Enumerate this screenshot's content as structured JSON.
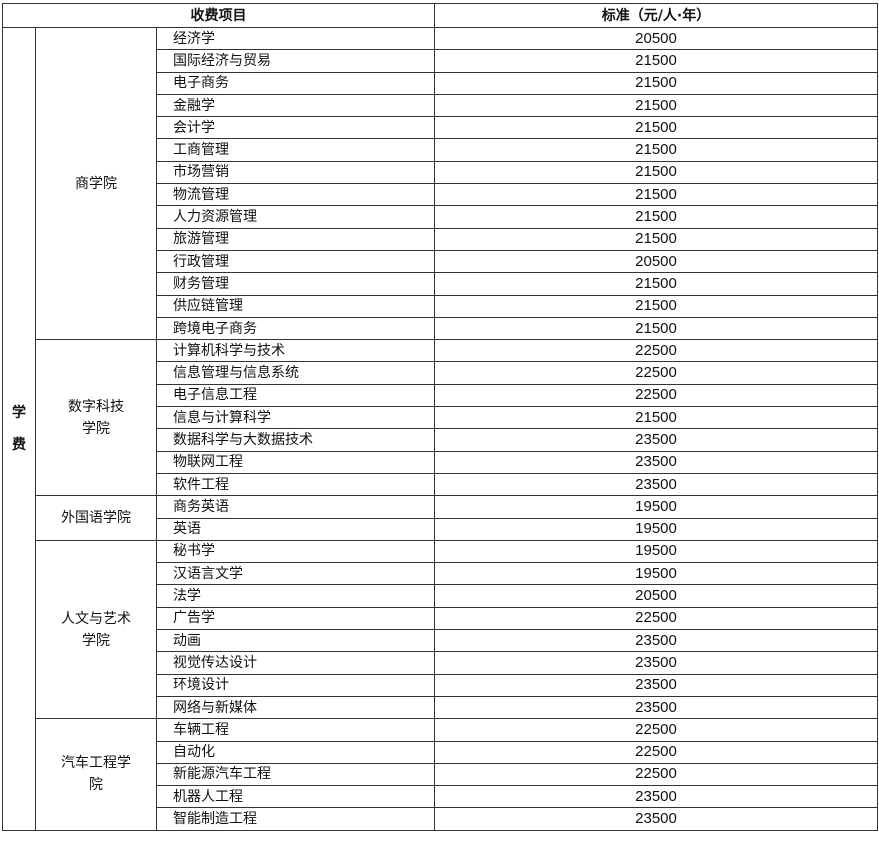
{
  "header": {
    "item": "收费项目",
    "standard": "标准（元/人·年）"
  },
  "category": "学费",
  "colleges": [
    {
      "name": "商学院",
      "majors": [
        [
          "经济学",
          "20500"
        ],
        [
          "国际经济与贸易",
          "21500"
        ],
        [
          "电子商务",
          "21500"
        ],
        [
          "金融学",
          "21500"
        ],
        [
          "会计学",
          "21500"
        ],
        [
          "工商管理",
          "21500"
        ],
        [
          "市场营销",
          "21500"
        ],
        [
          "物流管理",
          "21500"
        ],
        [
          "人力资源管理",
          "21500"
        ],
        [
          "旅游管理",
          "21500"
        ],
        [
          "行政管理",
          "20500"
        ],
        [
          "财务管理",
          "21500"
        ],
        [
          "供应链管理",
          "21500"
        ],
        [
          "跨境电子商务",
          "21500"
        ]
      ]
    },
    {
      "name": "数字科技学院",
      "majors": [
        [
          "计算机科学与技术",
          "22500"
        ],
        [
          "信息管理与信息系统",
          "22500"
        ],
        [
          "电子信息工程",
          "22500"
        ],
        [
          "信息与计算科学",
          "21500"
        ],
        [
          "数据科学与大数据技术",
          "23500"
        ],
        [
          "物联网工程",
          "23500"
        ],
        [
          "软件工程",
          "23500"
        ]
      ]
    },
    {
      "name": "外国语学院",
      "majors": [
        [
          "商务英语",
          "19500"
        ],
        [
          "英语",
          "19500"
        ]
      ]
    },
    {
      "name": "人文与艺术学院",
      "majors": [
        [
          "秘书学",
          "19500"
        ],
        [
          "汉语言文学",
          "19500"
        ],
        [
          "法学",
          "20500"
        ],
        [
          "广告学",
          "22500"
        ],
        [
          "动画",
          "23500"
        ],
        [
          "视觉传达设计",
          "23500"
        ],
        [
          "环境设计",
          "23500"
        ],
        [
          "网络与新媒体",
          "23500"
        ]
      ]
    },
    {
      "name": "汽车工程学院",
      "majors": [
        [
          "车辆工程",
          "22500"
        ],
        [
          "自动化",
          "22500"
        ],
        [
          "新能源汽车工程",
          "22500"
        ],
        [
          "机器人工程",
          "23500"
        ],
        [
          "智能制造工程",
          "23500"
        ]
      ]
    }
  ]
}
